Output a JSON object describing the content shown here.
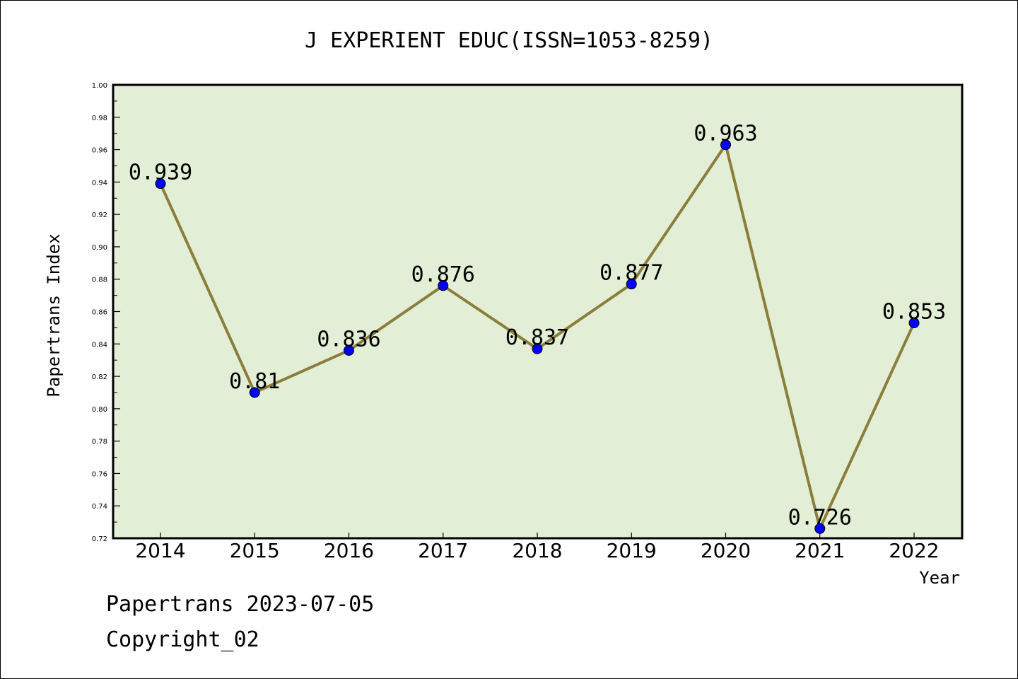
{
  "chart_data": {
    "type": "line",
    "title": "J EXPERIENT EDUC(ISSN=1053-8259)",
    "xlabel": "Year",
    "ylabel": "Papertrans Index",
    "categories": [
      "2014",
      "2015",
      "2016",
      "2017",
      "2018",
      "2019",
      "2020",
      "2021",
      "2022"
    ],
    "values": [
      0.939,
      0.81,
      0.836,
      0.876,
      0.837,
      0.877,
      0.963,
      0.726,
      0.853
    ],
    "data_labels": [
      "0.939",
      "0.81",
      "0.836",
      "0.876",
      "0.837",
      "0.877",
      "0.963",
      "0.726",
      "0.853"
    ],
    "ylim": [
      0.72,
      1.0
    ],
    "yticks": [
      "0.72",
      "0.74",
      "0.76",
      "0.78",
      "0.80",
      "0.82",
      "0.84",
      "0.86",
      "0.88",
      "0.90",
      "0.92",
      "0.94",
      "0.96",
      "0.98",
      "1.00"
    ],
    "grid": false,
    "colors": {
      "plot_background": "#e2efd6",
      "line": "#8b7d3a",
      "marker": "#0000ff"
    }
  },
  "footer": {
    "line1": "Papertrans 2023-07-05",
    "line2": "Copyright_02"
  }
}
